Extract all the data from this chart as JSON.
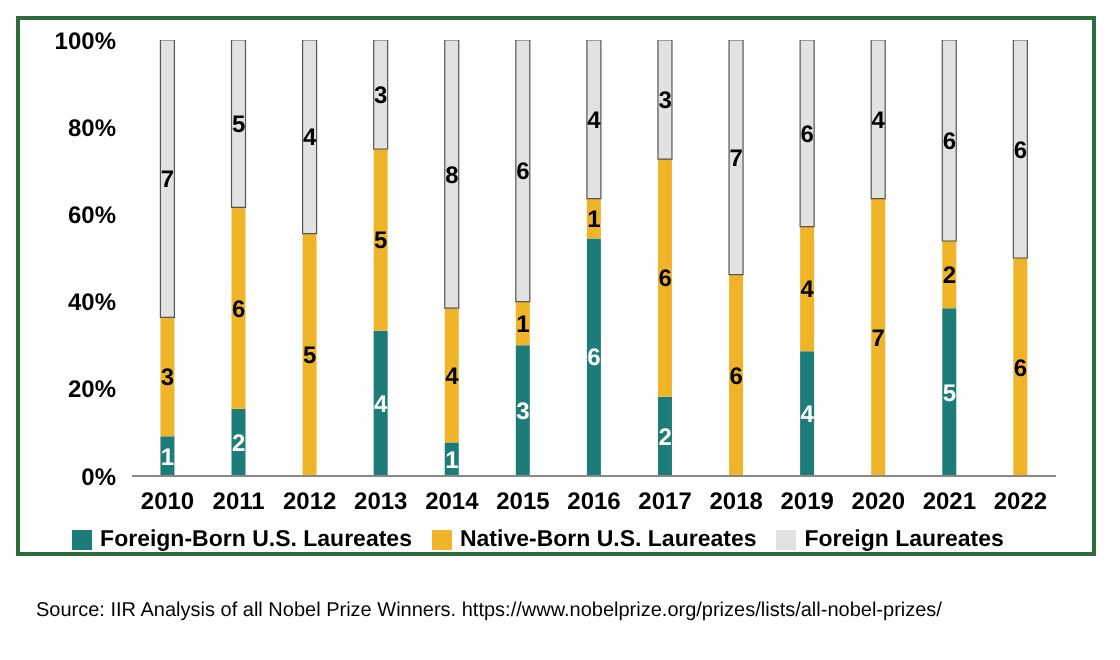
{
  "chart_data": {
    "type": "bar",
    "stacked": true,
    "categories": [
      "2010",
      "2011",
      "2012",
      "2013",
      "2014",
      "2015",
      "2016",
      "2017",
      "2018",
      "2019",
      "2020",
      "2021",
      "2022"
    ],
    "series": [
      {
        "name": "Foreign-Born U.S. Laureates",
        "color": "#1b7c78",
        "values": [
          9.1,
          15.4,
          0,
          33.3,
          7.7,
          30,
          54.5,
          18.2,
          0,
          28.6,
          0,
          38.5,
          0
        ]
      },
      {
        "name": "Native-Born U.S. Laureates",
        "color": "#f0b429",
        "values": [
          27.3,
          46.2,
          55.6,
          41.7,
          30.8,
          10,
          9.1,
          54.5,
          46.2,
          28.6,
          63.6,
          15.4,
          50
        ]
      },
      {
        "name": "Foreign Laureates",
        "color": "#e2e2e2",
        "values": [
          63.6,
          38.4,
          44.4,
          25,
          61.5,
          60,
          36.4,
          27.3,
          53.8,
          42.8,
          36.4,
          46.1,
          50
        ]
      }
    ],
    "ylim": [
      0,
      100
    ],
    "yticks": [
      {
        "value": 0,
        "label": "0%"
      },
      {
        "value": 20,
        "label": "20%"
      },
      {
        "value": 40,
        "label": "40%"
      },
      {
        "value": 60,
        "label": "60%"
      },
      {
        "value": 80,
        "label": "80%"
      },
      {
        "value": 100,
        "label": "100%"
      }
    ],
    "grid": false,
    "legend": "bottom",
    "annotations": [
      {
        "text": "1",
        "x": "2010",
        "y": 4.5
      },
      {
        "text": "3",
        "x": "2010",
        "y": 22.8
      },
      {
        "text": "7",
        "x": "2010",
        "y": 68.2
      },
      {
        "text": "2",
        "x": "2011",
        "y": 7.7
      },
      {
        "text": "6",
        "x": "2011",
        "y": 38.5
      },
      {
        "text": "5",
        "x": "2011",
        "y": 80.8
      },
      {
        "text": "5",
        "x": "2012",
        "y": 27.8
      },
      {
        "text": "4",
        "x": "2012",
        "y": 77.8
      },
      {
        "text": "4",
        "x": "2013",
        "y": 16.7
      },
      {
        "text": "5",
        "x": "2013",
        "y": 54.2
      },
      {
        "text": "3",
        "x": "2013",
        "y": 87.5
      },
      {
        "text": "1",
        "x": "2014",
        "y": 3.8
      },
      {
        "text": "4",
        "x": "2014",
        "y": 23.1
      },
      {
        "text": "8",
        "x": "2014",
        "y": 69.2
      },
      {
        "text": "3",
        "x": "2015",
        "y": 15
      },
      {
        "text": "1",
        "x": "2015",
        "y": 35
      },
      {
        "text": "6",
        "x": "2015",
        "y": 70
      },
      {
        "text": "6",
        "x": "2016",
        "y": 27.3
      },
      {
        "text": "1",
        "x": "2016",
        "y": 59.1
      },
      {
        "text": "4",
        "x": "2016",
        "y": 81.8
      },
      {
        "text": "2",
        "x": "2017",
        "y": 9.1
      },
      {
        "text": "6",
        "x": "2017",
        "y": 45.5
      },
      {
        "text": "3",
        "x": "2017",
        "y": 86.4
      },
      {
        "text": "6",
        "x": "2018",
        "y": 23.1
      },
      {
        "text": "7",
        "x": "2018",
        "y": 73.1
      },
      {
        "text": "4",
        "x": "2019",
        "y": 14.3
      },
      {
        "text": "4",
        "x": "2019",
        "y": 42.9
      },
      {
        "text": "6",
        "x": "2019",
        "y": 78.6
      },
      {
        "text": "7",
        "x": "2020",
        "y": 31.8
      },
      {
        "text": "4",
        "x": "2020",
        "y": 81.8
      },
      {
        "text": "5",
        "x": "2021",
        "y": 19.2
      },
      {
        "text": "2",
        "x": "2021",
        "y": 46.2
      },
      {
        "text": "6",
        "x": "2021",
        "y": 76.9
      },
      {
        "text": "6",
        "x": "2022",
        "y": 25
      },
      {
        "text": "6",
        "x": "2022",
        "y": 75
      },
      "Source: IIR Analysis of all Nobel Prize Winners. https://www.nobelprize.org/prizes/lists/all-nobel-prizes/"
    ]
  }
}
